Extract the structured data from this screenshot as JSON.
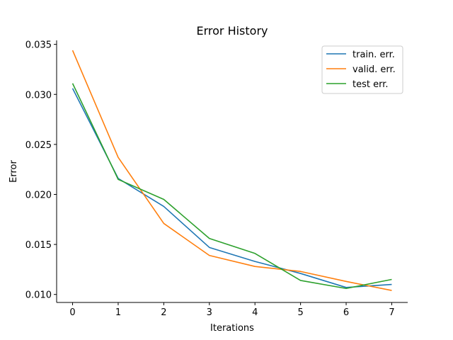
{
  "chart_data": {
    "type": "line",
    "title": "Error History",
    "xlabel": "Iterations",
    "ylabel": "Error",
    "x": [
      0,
      1,
      2,
      3,
      4,
      5,
      6,
      7
    ],
    "xlim": [
      -0.35,
      7.35
    ],
    "ylim": [
      0.0092,
      0.0354
    ],
    "xticks": [
      "0",
      "1",
      "2",
      "3",
      "4",
      "5",
      "6",
      "7"
    ],
    "yticks": [
      "0.010",
      "0.015",
      "0.020",
      "0.025",
      "0.030",
      "0.035"
    ],
    "grid": false,
    "legend_position": "top-right",
    "series": [
      {
        "name": "train. err.",
        "color": "#1f77b4",
        "values": [
          0.0306,
          0.0216,
          0.0188,
          0.0147,
          0.0133,
          0.0121,
          0.0107,
          0.011
        ]
      },
      {
        "name": "valid. err.",
        "color": "#ff7f0e",
        "values": [
          0.0344,
          0.0237,
          0.0171,
          0.0139,
          0.0128,
          0.0123,
          0.0113,
          0.0104
        ]
      },
      {
        "name": "test err.",
        "color": "#2ca02c",
        "values": [
          0.0311,
          0.0215,
          0.0195,
          0.0156,
          0.0141,
          0.0114,
          0.0106,
          0.0115
        ]
      }
    ]
  }
}
